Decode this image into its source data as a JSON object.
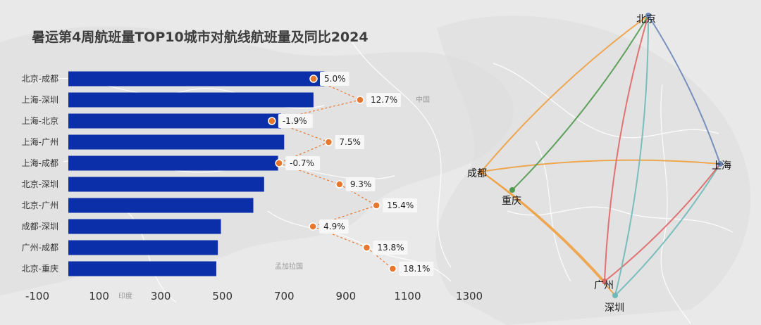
{
  "colors": {
    "bar": "#0b2fa8",
    "dot": "#e8772e",
    "neg_highlight": "#c9d3f5",
    "route_orange": "#f0a040",
    "route_red": "#e06666",
    "route_green": "#4f9a4f",
    "route_blue": "#6b86b8",
    "route_teal": "#6fb9b9"
  },
  "chart_data": {
    "type": "bar",
    "orientation": "horizontal",
    "title": "暑运第4周航班量TOP10城市对航线航班量及同比2024",
    "categories": [
      "北京-成都",
      "上海-深圳",
      "上海-北京",
      "上海-广州",
      "上海-成都",
      "北京-深圳",
      "北京-广州",
      "成都-深圳",
      "广州-成都",
      "北京-重庆"
    ],
    "values": [
      830,
      795,
      690,
      700,
      680,
      635,
      600,
      495,
      485,
      480
    ],
    "yoy_labels": [
      "5.0%",
      "12.7%",
      "-1.9%",
      "7.5%",
      "-0.7%",
      "9.3%",
      "15.4%",
      "4.9%",
      "13.8%",
      "18.1%"
    ],
    "yoy_values": [
      5.0,
      12.7,
      -1.9,
      7.5,
      -0.7,
      9.3,
      15.4,
      4.9,
      13.8,
      18.1
    ],
    "x_ticks": [
      "-100",
      "100",
      "300",
      "500",
      "700",
      "900",
      "1100",
      "1300"
    ],
    "xlim": [
      -100,
      1300
    ],
    "grid": false,
    "legend": "none"
  },
  "map": {
    "background_labels": [
      "中国",
      "孟加拉国",
      "印度"
    ],
    "cities": [
      {
        "name": "北京",
        "color": "#6b86b8"
      },
      {
        "name": "上海",
        "color": "#6b86b8"
      },
      {
        "name": "成都",
        "color": "#f0a040"
      },
      {
        "name": "重庆",
        "color": "#4f9a4f"
      },
      {
        "name": "广州",
        "color": "#e06666"
      },
      {
        "name": "深圳",
        "color": "#6fb9b9"
      }
    ],
    "routes": [
      {
        "from": "北京",
        "to": "成都",
        "color": "#f0a040"
      },
      {
        "from": "上海",
        "to": "深圳",
        "color": "#6fb9b9"
      },
      {
        "from": "上海",
        "to": "北京",
        "color": "#6b86b8"
      },
      {
        "from": "上海",
        "to": "广州",
        "color": "#e06666"
      },
      {
        "from": "上海",
        "to": "成都",
        "color": "#f0a040"
      },
      {
        "from": "北京",
        "to": "深圳",
        "color": "#6fb9b9"
      },
      {
        "from": "北京",
        "to": "广州",
        "color": "#e06666"
      },
      {
        "from": "成都",
        "to": "深圳",
        "color": "#f0a040"
      },
      {
        "from": "广州",
        "to": "成都",
        "color": "#f0a040"
      },
      {
        "from": "北京",
        "to": "重庆",
        "color": "#4f9a4f"
      }
    ]
  }
}
